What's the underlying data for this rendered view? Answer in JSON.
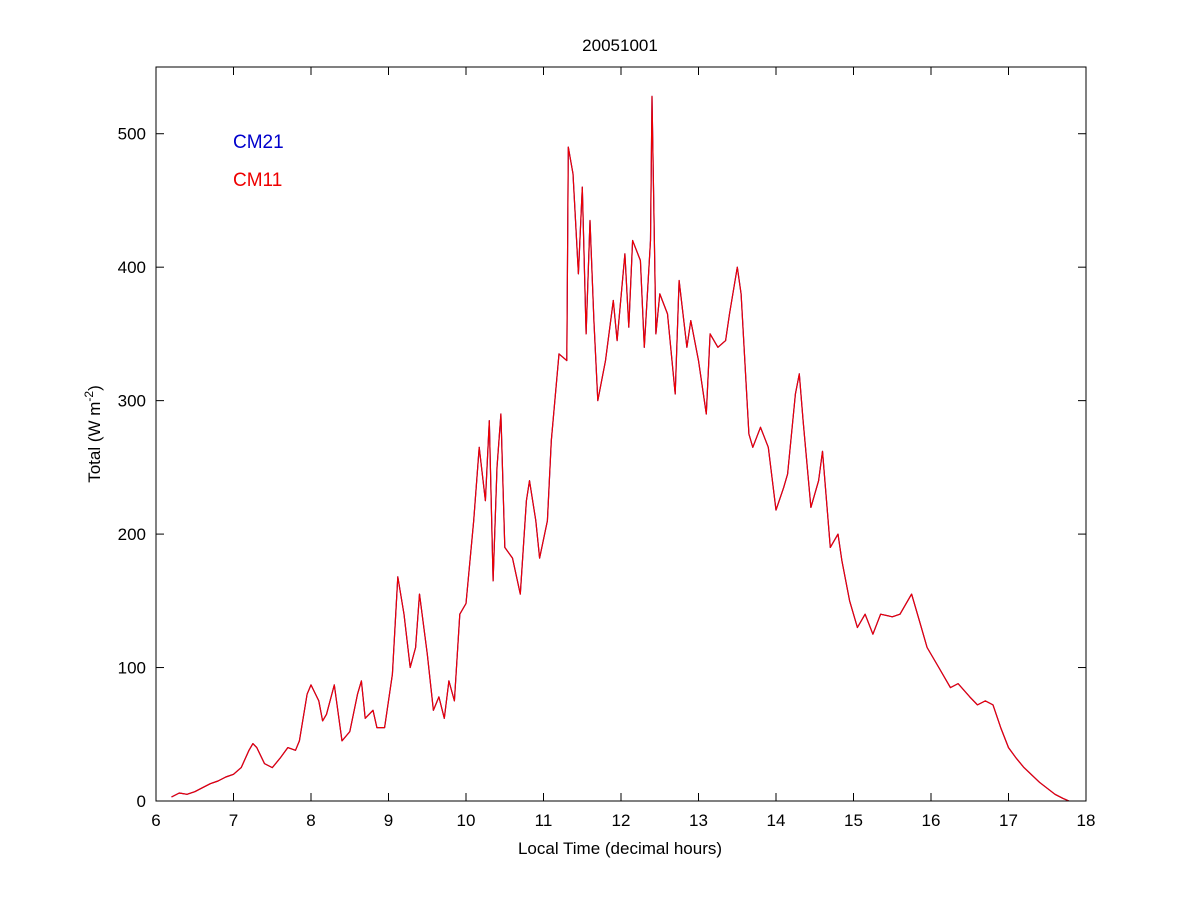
{
  "chart_data": {
    "type": "line",
    "title": "20051001",
    "xlabel": "Local Time (decimal hours)",
    "ylabel": "Total (W m",
    "ylabel_sup": "-2",
    "ylabel_close": ")",
    "xlim": [
      6,
      18
    ],
    "ylim": [
      0,
      550
    ],
    "xticks": [
      6,
      7,
      8,
      9,
      10,
      11,
      12,
      13,
      14,
      15,
      16,
      17,
      18
    ],
    "yticks": [
      0,
      100,
      200,
      300,
      400,
      500
    ],
    "grid": false,
    "legend_position": "top-left",
    "series": [
      {
        "name": "CM21",
        "color": "#0000cc",
        "points": [
          [
            6.2,
            3
          ],
          [
            6.3,
            6
          ],
          [
            6.4,
            5
          ],
          [
            6.5,
            7
          ],
          [
            6.6,
            10
          ],
          [
            6.7,
            13
          ],
          [
            6.8,
            15
          ],
          [
            6.9,
            18
          ],
          [
            7.0,
            20
          ],
          [
            7.1,
            25
          ],
          [
            7.2,
            38
          ],
          [
            7.25,
            43
          ],
          [
            7.3,
            40
          ],
          [
            7.4,
            28
          ],
          [
            7.5,
            25
          ],
          [
            7.6,
            32
          ],
          [
            7.7,
            40
          ],
          [
            7.8,
            38
          ],
          [
            7.85,
            45
          ],
          [
            7.95,
            80
          ],
          [
            8.0,
            87
          ],
          [
            8.1,
            75
          ],
          [
            8.15,
            60
          ],
          [
            8.2,
            65
          ],
          [
            8.3,
            87
          ],
          [
            8.4,
            45
          ],
          [
            8.5,
            52
          ],
          [
            8.6,
            80
          ],
          [
            8.65,
            90
          ],
          [
            8.7,
            62
          ],
          [
            8.8,
            68
          ],
          [
            8.85,
            55
          ],
          [
            8.95,
            55
          ],
          [
            9.05,
            95
          ],
          [
            9.12,
            168
          ],
          [
            9.2,
            140
          ],
          [
            9.28,
            100
          ],
          [
            9.35,
            115
          ],
          [
            9.4,
            155
          ],
          [
            9.5,
            110
          ],
          [
            9.58,
            68
          ],
          [
            9.65,
            78
          ],
          [
            9.72,
            62
          ],
          [
            9.78,
            90
          ],
          [
            9.85,
            75
          ],
          [
            9.92,
            140
          ],
          [
            10.0,
            148
          ],
          [
            10.1,
            210
          ],
          [
            10.17,
            265
          ],
          [
            10.25,
            225
          ],
          [
            10.3,
            285
          ],
          [
            10.35,
            165
          ],
          [
            10.4,
            250
          ],
          [
            10.45,
            290
          ],
          [
            10.5,
            190
          ],
          [
            10.6,
            182
          ],
          [
            10.7,
            155
          ],
          [
            10.78,
            225
          ],
          [
            10.82,
            240
          ],
          [
            10.9,
            210
          ],
          [
            10.95,
            182
          ],
          [
            11.05,
            210
          ],
          [
            11.1,
            270
          ],
          [
            11.2,
            335
          ],
          [
            11.3,
            330
          ],
          [
            11.32,
            490
          ],
          [
            11.38,
            470
          ],
          [
            11.45,
            395
          ],
          [
            11.5,
            460
          ],
          [
            11.55,
            350
          ],
          [
            11.6,
            435
          ],
          [
            11.65,
            360
          ],
          [
            11.7,
            300
          ],
          [
            11.8,
            330
          ],
          [
            11.9,
            375
          ],
          [
            11.95,
            345
          ],
          [
            12.05,
            410
          ],
          [
            12.1,
            355
          ],
          [
            12.15,
            420
          ],
          [
            12.25,
            405
          ],
          [
            12.3,
            340
          ],
          [
            12.38,
            420
          ],
          [
            12.4,
            528
          ],
          [
            12.45,
            350
          ],
          [
            12.5,
            380
          ],
          [
            12.6,
            365
          ],
          [
            12.7,
            305
          ],
          [
            12.75,
            390
          ],
          [
            12.85,
            340
          ],
          [
            12.9,
            360
          ],
          [
            13.0,
            330
          ],
          [
            13.1,
            290
          ],
          [
            13.15,
            350
          ],
          [
            13.25,
            340
          ],
          [
            13.35,
            345
          ],
          [
            13.4,
            365
          ],
          [
            13.5,
            400
          ],
          [
            13.55,
            380
          ],
          [
            13.65,
            275
          ],
          [
            13.7,
            265
          ],
          [
            13.8,
            280
          ],
          [
            13.9,
            265
          ],
          [
            14.0,
            218
          ],
          [
            14.1,
            235
          ],
          [
            14.15,
            245
          ],
          [
            14.25,
            305
          ],
          [
            14.3,
            320
          ],
          [
            14.35,
            285
          ],
          [
            14.45,
            220
          ],
          [
            14.55,
            240
          ],
          [
            14.6,
            262
          ],
          [
            14.7,
            190
          ],
          [
            14.8,
            200
          ],
          [
            14.85,
            180
          ],
          [
            14.95,
            150
          ],
          [
            15.05,
            130
          ],
          [
            15.15,
            140
          ],
          [
            15.25,
            125
          ],
          [
            15.35,
            140
          ],
          [
            15.5,
            138
          ],
          [
            15.6,
            140
          ],
          [
            15.75,
            155
          ],
          [
            15.85,
            135
          ],
          [
            15.95,
            115
          ],
          [
            16.1,
            100
          ],
          [
            16.25,
            85
          ],
          [
            16.35,
            88
          ],
          [
            16.5,
            78
          ],
          [
            16.6,
            72
          ],
          [
            16.7,
            75
          ],
          [
            16.8,
            72
          ],
          [
            16.9,
            55
          ],
          [
            17.0,
            40
          ],
          [
            17.1,
            32
          ],
          [
            17.2,
            25
          ],
          [
            17.4,
            14
          ],
          [
            17.6,
            5
          ],
          [
            17.7,
            2
          ],
          [
            17.78,
            0
          ]
        ]
      },
      {
        "name": "CM11",
        "color": "#ee0000",
        "points": [
          [
            6.2,
            3
          ],
          [
            6.3,
            6
          ],
          [
            6.4,
            5
          ],
          [
            6.5,
            7
          ],
          [
            6.6,
            10
          ],
          [
            6.7,
            13
          ],
          [
            6.8,
            15
          ],
          [
            6.9,
            18
          ],
          [
            7.0,
            20
          ],
          [
            7.1,
            25
          ],
          [
            7.2,
            38
          ],
          [
            7.25,
            43
          ],
          [
            7.3,
            40
          ],
          [
            7.4,
            28
          ],
          [
            7.5,
            25
          ],
          [
            7.6,
            32
          ],
          [
            7.7,
            40
          ],
          [
            7.8,
            38
          ],
          [
            7.85,
            45
          ],
          [
            7.95,
            80
          ],
          [
            8.0,
            87
          ],
          [
            8.1,
            75
          ],
          [
            8.15,
            60
          ],
          [
            8.2,
            65
          ],
          [
            8.3,
            87
          ],
          [
            8.4,
            45
          ],
          [
            8.5,
            52
          ],
          [
            8.6,
            80
          ],
          [
            8.65,
            90
          ],
          [
            8.7,
            62
          ],
          [
            8.8,
            68
          ],
          [
            8.85,
            55
          ],
          [
            8.95,
            55
          ],
          [
            9.05,
            95
          ],
          [
            9.12,
            168
          ],
          [
            9.2,
            140
          ],
          [
            9.28,
            100
          ],
          [
            9.35,
            115
          ],
          [
            9.4,
            155
          ],
          [
            9.5,
            110
          ],
          [
            9.58,
            68
          ],
          [
            9.65,
            78
          ],
          [
            9.72,
            62
          ],
          [
            9.78,
            90
          ],
          [
            9.85,
            75
          ],
          [
            9.92,
            140
          ],
          [
            10.0,
            148
          ],
          [
            10.1,
            210
          ],
          [
            10.17,
            265
          ],
          [
            10.25,
            225
          ],
          [
            10.3,
            285
          ],
          [
            10.35,
            165
          ],
          [
            10.4,
            250
          ],
          [
            10.45,
            290
          ],
          [
            10.5,
            190
          ],
          [
            10.6,
            182
          ],
          [
            10.7,
            155
          ],
          [
            10.78,
            225
          ],
          [
            10.82,
            240
          ],
          [
            10.9,
            210
          ],
          [
            10.95,
            182
          ],
          [
            11.05,
            210
          ],
          [
            11.1,
            270
          ],
          [
            11.2,
            335
          ],
          [
            11.3,
            330
          ],
          [
            11.32,
            490
          ],
          [
            11.38,
            470
          ],
          [
            11.45,
            395
          ],
          [
            11.5,
            460
          ],
          [
            11.55,
            350
          ],
          [
            11.6,
            435
          ],
          [
            11.65,
            360
          ],
          [
            11.7,
            300
          ],
          [
            11.8,
            330
          ],
          [
            11.9,
            375
          ],
          [
            11.95,
            345
          ],
          [
            12.05,
            410
          ],
          [
            12.1,
            355
          ],
          [
            12.15,
            420
          ],
          [
            12.25,
            405
          ],
          [
            12.3,
            340
          ],
          [
            12.38,
            420
          ],
          [
            12.4,
            528
          ],
          [
            12.45,
            350
          ],
          [
            12.5,
            380
          ],
          [
            12.6,
            365
          ],
          [
            12.7,
            305
          ],
          [
            12.75,
            390
          ],
          [
            12.85,
            340
          ],
          [
            12.9,
            360
          ],
          [
            13.0,
            330
          ],
          [
            13.1,
            290
          ],
          [
            13.15,
            350
          ],
          [
            13.25,
            340
          ],
          [
            13.35,
            345
          ],
          [
            13.4,
            365
          ],
          [
            13.5,
            400
          ],
          [
            13.55,
            380
          ],
          [
            13.65,
            275
          ],
          [
            13.7,
            265
          ],
          [
            13.8,
            280
          ],
          [
            13.9,
            265
          ],
          [
            14.0,
            218
          ],
          [
            14.1,
            235
          ],
          [
            14.15,
            245
          ],
          [
            14.25,
            305
          ],
          [
            14.3,
            320
          ],
          [
            14.35,
            285
          ],
          [
            14.45,
            220
          ],
          [
            14.55,
            240
          ],
          [
            14.6,
            262
          ],
          [
            14.7,
            190
          ],
          [
            14.8,
            200
          ],
          [
            14.85,
            180
          ],
          [
            14.95,
            150
          ],
          [
            15.05,
            130
          ],
          [
            15.15,
            140
          ],
          [
            15.25,
            125
          ],
          [
            15.35,
            140
          ],
          [
            15.5,
            138
          ],
          [
            15.6,
            140
          ],
          [
            15.75,
            155
          ],
          [
            15.85,
            135
          ],
          [
            15.95,
            115
          ],
          [
            16.1,
            100
          ],
          [
            16.25,
            85
          ],
          [
            16.35,
            88
          ],
          [
            16.5,
            78
          ],
          [
            16.6,
            72
          ],
          [
            16.7,
            75
          ],
          [
            16.8,
            72
          ],
          [
            16.9,
            55
          ],
          [
            17.0,
            40
          ],
          [
            17.1,
            32
          ],
          [
            17.2,
            25
          ],
          [
            17.4,
            14
          ],
          [
            17.6,
            5
          ],
          [
            17.7,
            2
          ],
          [
            17.78,
            0
          ]
        ]
      }
    ]
  }
}
